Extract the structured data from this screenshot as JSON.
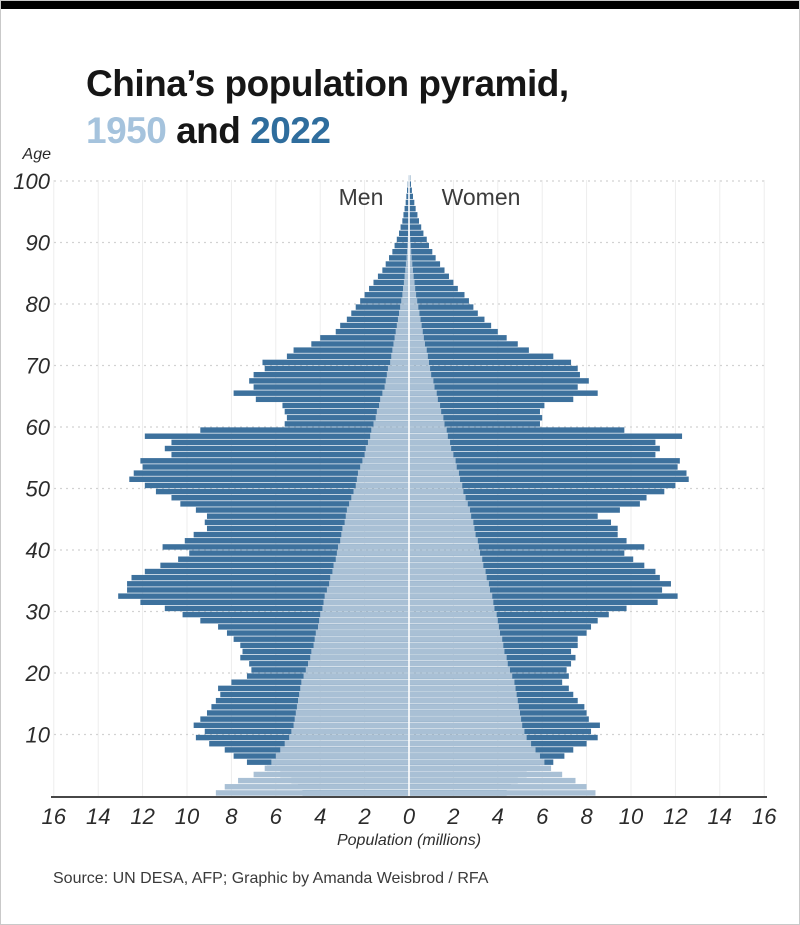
{
  "page": {
    "accent_bar_color": "#000000",
    "background_color": "#ffffff",
    "border_color": "#c9c9c9"
  },
  "header": {
    "title_line1": "China’s population pyramid,",
    "title_year_1950": "1950",
    "title_and": " and ",
    "title_year_2022": "2022",
    "title_color": "#161616",
    "color_1950": "#a5c3dd",
    "color_2022": "#2f6d9d"
  },
  "footer": {
    "source": "Source: UN DESA, AFP; Graphic by Amanda Weisbrod / RFA"
  },
  "chart_data": {
    "type": "bar",
    "subtype": "population-pyramid",
    "title": "China's population pyramid, 1950 and 2022",
    "age_resolution": "single-year ages 0-100",
    "y_axis": {
      "label": "Age",
      "ticks": [
        100,
        90,
        80,
        70,
        60,
        50,
        40,
        30,
        20,
        10
      ],
      "min": 0,
      "max": 101
    },
    "x_axis": {
      "label": "Population (millions)",
      "ticks": [
        16,
        14,
        12,
        10,
        8,
        6,
        4,
        2,
        0,
        2,
        4,
        6,
        8,
        10,
        12,
        14,
        16
      ],
      "max_millions": 16
    },
    "side_labels": {
      "men": "Men",
      "women": "Women"
    },
    "grid": {
      "horizontal": "dashed",
      "vertical": "solid",
      "gridline_color": "#ededed",
      "dash_color": "#d2d2d2",
      "baseline_color": "#474747",
      "center_divider_color": "#ffffff"
    },
    "series": [
      {
        "name": "1950",
        "color": "#a9c0d5",
        "men": [
          8.7,
          8.3,
          7.7,
          7.0,
          6.5,
          6.2,
          6.0,
          5.8,
          5.6,
          5.4,
          5.3,
          5.2,
          5.15,
          5.1,
          5.05,
          5.0,
          4.95,
          4.9,
          4.85,
          4.75,
          4.65,
          4.55,
          4.45,
          4.4,
          4.3,
          4.25,
          4.2,
          4.1,
          4.05,
          4.0,
          3.9,
          3.85,
          3.8,
          3.7,
          3.6,
          3.55,
          3.45,
          3.4,
          3.3,
          3.25,
          3.2,
          3.1,
          3.05,
          3.0,
          2.9,
          2.85,
          2.8,
          2.7,
          2.6,
          2.5,
          2.4,
          2.35,
          2.3,
          2.2,
          2.1,
          2.0,
          1.95,
          1.85,
          1.75,
          1.7,
          1.6,
          1.5,
          1.45,
          1.35,
          1.3,
          1.2,
          1.1,
          1.05,
          1.0,
          0.95,
          0.85,
          0.8,
          0.75,
          0.7,
          0.65,
          0.6,
          0.55,
          0.5,
          0.45,
          0.4,
          0.35,
          0.3,
          0.27,
          0.23,
          0.2,
          0.17,
          0.14,
          0.11,
          0.09,
          0.07,
          0.055,
          0.04,
          0.03,
          0.022,
          0.016,
          0.012,
          0.008,
          0.005,
          0.003,
          0.002,
          0.001
        ],
        "women": [
          8.4,
          8.0,
          7.5,
          6.9,
          6.4,
          6.1,
          5.9,
          5.7,
          5.5,
          5.3,
          5.2,
          5.1,
          5.05,
          5.0,
          4.95,
          4.9,
          4.85,
          4.8,
          4.75,
          4.65,
          4.55,
          4.45,
          4.4,
          4.3,
          4.25,
          4.2,
          4.1,
          4.05,
          4.0,
          3.95,
          3.85,
          3.8,
          3.75,
          3.65,
          3.6,
          3.5,
          3.45,
          3.35,
          3.3,
          3.2,
          3.15,
          3.1,
          3.0,
          2.95,
          2.9,
          2.8,
          2.75,
          2.65,
          2.55,
          2.45,
          2.4,
          2.3,
          2.25,
          2.15,
          2.1,
          2.0,
          1.9,
          1.85,
          1.75,
          1.7,
          1.6,
          1.55,
          1.45,
          1.4,
          1.3,
          1.25,
          1.15,
          1.1,
          1.0,
          0.95,
          0.9,
          0.85,
          0.8,
          0.72,
          0.67,
          0.62,
          0.57,
          0.52,
          0.47,
          0.42,
          0.37,
          0.32,
          0.28,
          0.25,
          0.21,
          0.18,
          0.15,
          0.12,
          0.1,
          0.08,
          0.06,
          0.045,
          0.035,
          0.025,
          0.018,
          0.013,
          0.009,
          0.006,
          0.004,
          0.002,
          0.001
        ]
      },
      {
        "name": "2022",
        "color": "#3d719d",
        "men": [
          4.8,
          5.0,
          5.3,
          5.8,
          6.4,
          7.3,
          7.9,
          8.3,
          9.0,
          9.6,
          9.2,
          9.7,
          9.4,
          9.1,
          8.9,
          8.7,
          8.5,
          8.6,
          8.0,
          7.3,
          7.1,
          7.2,
          7.6,
          7.5,
          7.6,
          7.9,
          8.2,
          8.6,
          9.4,
          10.2,
          11.0,
          12.1,
          13.1,
          12.7,
          12.7,
          12.5,
          11.9,
          11.2,
          10.4,
          9.9,
          11.1,
          10.1,
          9.7,
          9.1,
          9.2,
          9.1,
          9.6,
          10.3,
          10.7,
          11.4,
          11.9,
          12.6,
          12.4,
          12.0,
          12.1,
          10.7,
          11.0,
          10.7,
          11.9,
          9.4,
          5.6,
          5.5,
          5.6,
          5.7,
          6.9,
          7.9,
          7.0,
          7.2,
          7.0,
          6.5,
          6.6,
          5.5,
          5.2,
          4.4,
          4.0,
          3.3,
          3.1,
          2.8,
          2.6,
          2.4,
          2.2,
          2.0,
          1.8,
          1.6,
          1.4,
          1.2,
          1.05,
          0.9,
          0.75,
          0.65,
          0.55,
          0.45,
          0.38,
          0.3,
          0.25,
          0.2,
          0.15,
          0.12,
          0.09,
          0.06,
          0.04
        ],
        "women": [
          4.4,
          4.6,
          4.9,
          5.3,
          5.9,
          6.5,
          7.0,
          7.4,
          8.0,
          8.5,
          8.2,
          8.6,
          8.1,
          8.0,
          7.9,
          7.6,
          7.4,
          7.2,
          6.9,
          7.2,
          7.1,
          7.3,
          7.5,
          7.3,
          7.6,
          7.6,
          8.0,
          8.2,
          8.5,
          9.0,
          9.8,
          11.2,
          12.1,
          11.4,
          11.8,
          11.3,
          11.1,
          10.6,
          10.1,
          9.7,
          10.6,
          9.8,
          9.4,
          9.4,
          9.1,
          8.5,
          9.5,
          10.4,
          10.7,
          11.5,
          12.0,
          12.6,
          12.5,
          12.1,
          12.2,
          11.1,
          11.3,
          11.1,
          12.3,
          9.7,
          5.9,
          6.0,
          5.9,
          6.1,
          7.4,
          8.5,
          7.6,
          8.1,
          7.7,
          7.6,
          7.3,
          6.5,
          5.4,
          4.9,
          4.4,
          4.0,
          3.7,
          3.4,
          3.1,
          2.9,
          2.7,
          2.5,
          2.2,
          2.0,
          1.8,
          1.6,
          1.4,
          1.2,
          1.05,
          0.9,
          0.8,
          0.65,
          0.55,
          0.45,
          0.38,
          0.3,
          0.24,
          0.18,
          0.13,
          0.09,
          0.06
        ]
      }
    ]
  }
}
